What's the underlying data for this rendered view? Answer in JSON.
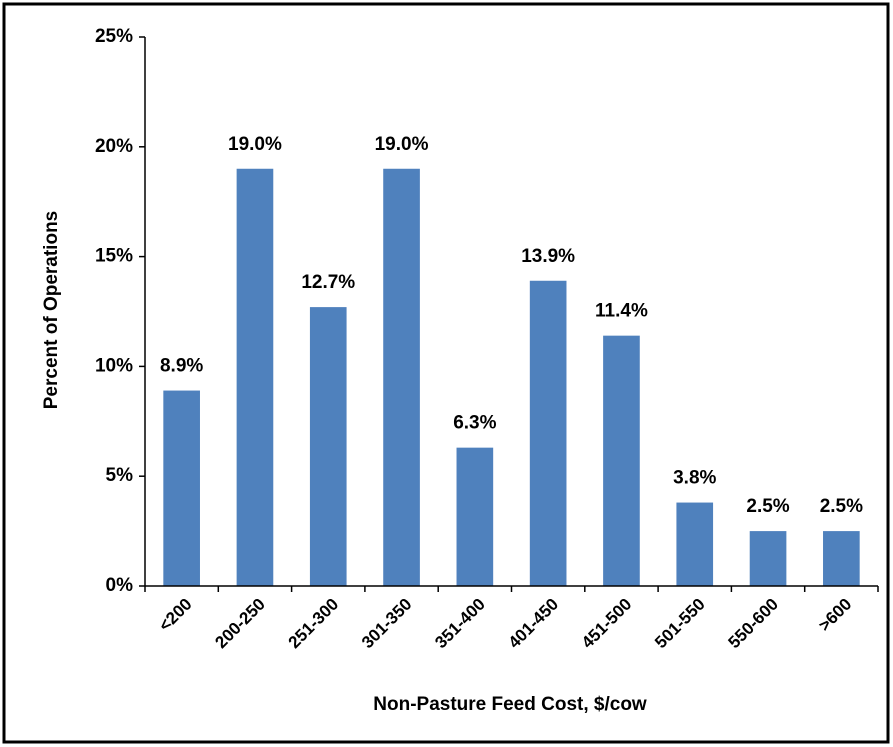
{
  "chart_data": {
    "type": "bar",
    "x_label": "Non-Pasture Feed Cost, $/cow",
    "y_label": "Percent of Operations",
    "categories": [
      "<200",
      "200-250",
      "251-300",
      "301-350",
      "351-400",
      "401-450",
      "451-500",
      "501-550",
      "550-600",
      ">600"
    ],
    "values": [
      8.9,
      19.0,
      12.7,
      19.0,
      6.3,
      13.9,
      11.4,
      3.8,
      2.5,
      2.5
    ],
    "value_labels": [
      "8.9%",
      "19.0%",
      "12.7%",
      "19.0%",
      "6.3%",
      "13.9%",
      "11.4%",
      "3.8%",
      "2.5%",
      "2.5%"
    ],
    "color": "#4f81bd",
    "ylim": [
      0,
      25
    ],
    "yticks": [
      {
        "value": 0,
        "label": "0%"
      },
      {
        "value": 5,
        "label": "5%"
      },
      {
        "value": 10,
        "label": "10%"
      },
      {
        "value": 15,
        "label": "15%"
      },
      {
        "value": 20,
        "label": "20%"
      },
      {
        "value": 25,
        "label": "25%"
      }
    ],
    "grid": false
  }
}
